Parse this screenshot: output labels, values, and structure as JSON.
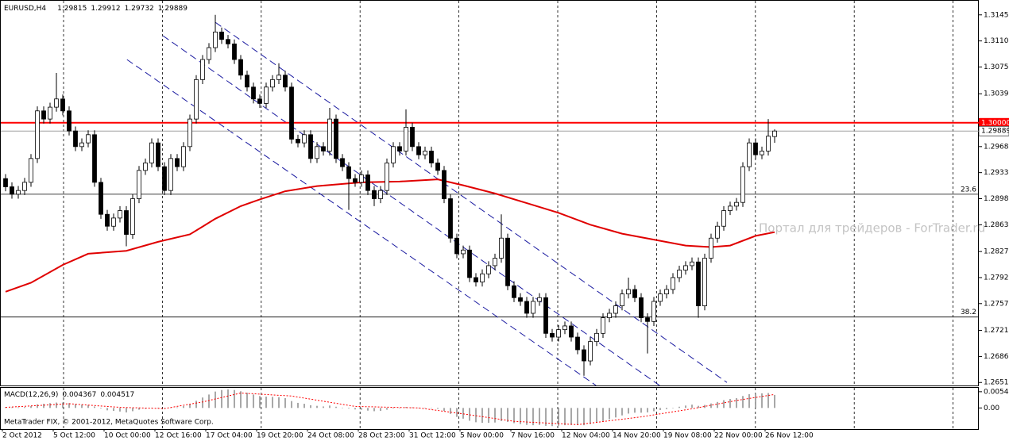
{
  "chart_data": {
    "type": "candlestick",
    "title": "EURUSD,H4",
    "categories": [
      "2 Oct 2012",
      null,
      null,
      null,
      null,
      null,
      null,
      null,
      "5 Oct 12:00",
      null,
      null,
      null,
      null,
      null,
      null,
      null,
      "10 Oct 00:00",
      null,
      null,
      null,
      null,
      null,
      null,
      null,
      "12 Oct 16:00",
      null,
      null,
      null,
      null,
      null,
      null,
      null,
      "17 Oct 04:00",
      null,
      null,
      null,
      null,
      null,
      null,
      null,
      "19 Oct 20:00",
      null,
      null,
      null,
      null,
      null,
      null,
      null,
      "24 Oct 08:00",
      null,
      null,
      null,
      null,
      null,
      null,
      null,
      "28 Oct 23:00",
      null,
      null,
      null,
      null,
      null,
      null,
      null,
      "31 Oct 12:00",
      null,
      null,
      null,
      null,
      null,
      null,
      null,
      "5 Nov 00:00",
      null,
      null,
      null,
      null,
      null,
      null,
      null,
      "7 Nov 16:00",
      null,
      null,
      null,
      null,
      null,
      null,
      null,
      "12 Nov 04:00",
      null,
      null,
      null,
      null,
      null,
      null,
      null,
      "14 Nov 20:00",
      null,
      null,
      null,
      null,
      null,
      null,
      null,
      "19 Nov 08:00",
      null,
      null,
      null,
      null,
      null,
      null,
      null,
      "22 Nov 00:00",
      null,
      null,
      null,
      null,
      null,
      null,
      null,
      "26 Nov 12:00",
      null
    ],
    "open": [
      1.2925,
      1.2914,
      1.2904,
      1.2909,
      1.292,
      1.2952,
      1.3016,
      1.3005,
      1.3021,
      1.3032,
      1.3016,
      1.2989,
      1.2968,
      1.2973,
      1.2984,
      1.292,
      1.2877,
      1.2861,
      1.2872,
      1.2882,
      1.285,
      1.2898,
      1.2936,
      1.2946,
      1.2973,
      1.2941,
      1.2909,
      1.2952,
      1.2941,
      1.2968,
      1.3005,
      1.3058,
      1.3085,
      1.3101,
      1.3122,
      1.3112,
      1.3106,
      1.3085,
      1.3064,
      1.3048,
      1.3032,
      1.3026,
      1.3048,
      1.3058,
      1.3064,
      1.3048,
      1.2978,
      1.2973,
      1.2984,
      1.2952,
      1.2968,
      1.2962,
      1.3005,
      1.2952,
      1.2941,
      1.2925,
      1.292,
      1.293,
      1.2909,
      1.2898,
      1.2909,
      1.2946,
      1.2968,
      1.2962,
      1.2994,
      1.2968,
      1.2957,
      1.2962,
      1.2946,
      1.2936,
      1.2898,
      1.2845,
      1.2824,
      1.2829,
      1.2792,
      1.2786,
      1.2797,
      1.2808,
      1.2818,
      1.2845,
      1.2781,
      1.2765,
      1.276,
      1.2744,
      1.276,
      1.2765,
      1.2717,
      1.2712,
      1.2722,
      1.2727,
      1.2712,
      1.2695,
      1.268,
      1.2706,
      1.2717,
      1.2738,
      1.2744,
      1.2754,
      1.277,
      1.2776,
      1.2765,
      1.2738,
      1.2733,
      1.276,
      1.277,
      1.2776,
      1.2792,
      1.2802,
      1.2808,
      1.2813,
      1.2754,
      1.2818,
      1.2845,
      1.2861,
      1.2882,
      1.2888,
      1.2893,
      1.2941,
      1.2973,
      1.2957,
      1.2962,
      1.29815
    ],
    "high": [
      1.2931,
      1.292,
      1.2915,
      1.2926,
      1.2958,
      1.3022,
      1.3022,
      1.3027,
      1.3067,
      1.3038,
      1.3022,
      1.2995,
      1.2979,
      1.299,
      1.299,
      1.2926,
      1.2883,
      1.2878,
      1.2888,
      1.2888,
      1.2904,
      1.2942,
      1.2952,
      1.2979,
      1.2979,
      1.2947,
      1.2958,
      1.2958,
      1.2974,
      1.3011,
      1.3064,
      1.3091,
      1.3107,
      1.3145,
      1.3128,
      1.3118,
      1.3112,
      1.3091,
      1.307,
      1.3054,
      1.3038,
      1.3054,
      1.3064,
      1.308,
      1.307,
      1.3054,
      1.2984,
      1.299,
      1.299,
      1.2974,
      1.2974,
      1.302,
      1.3011,
      1.2958,
      1.2947,
      1.2931,
      1.2936,
      1.2936,
      1.2915,
      1.2915,
      1.2952,
      1.2974,
      1.2974,
      1.3018,
      1.3,
      1.2974,
      1.2968,
      1.2968,
      1.2952,
      1.2942,
      1.2904,
      1.2851,
      1.2835,
      1.2835,
      1.2798,
      1.2803,
      1.2814,
      1.2824,
      1.2877,
      1.2851,
      1.2787,
      1.2771,
      1.2766,
      1.2766,
      1.2771,
      1.2771,
      1.2723,
      1.2728,
      1.2733,
      1.2733,
      1.2718,
      1.2701,
      1.2712,
      1.2723,
      1.2744,
      1.275,
      1.276,
      1.2776,
      1.2792,
      1.2782,
      1.2771,
      1.2744,
      1.2766,
      1.2776,
      1.2782,
      1.2798,
      1.2808,
      1.2814,
      1.2819,
      1.2819,
      1.2824,
      1.2851,
      1.2867,
      1.2888,
      1.2894,
      1.2899,
      1.2947,
      1.2979,
      1.2979,
      1.2968,
      1.3005,
      1.29912
    ],
    "low": [
      1.2908,
      1.2898,
      1.2898,
      1.2903,
      1.2914,
      1.2946,
      1.2999,
      1.2999,
      1.3015,
      1.301,
      1.2983,
      1.2962,
      1.2962,
      1.2967,
      1.2914,
      1.2871,
      1.2855,
      1.2855,
      1.2866,
      1.2834,
      1.2844,
      1.2892,
      1.293,
      1.294,
      1.2935,
      1.2903,
      1.2903,
      1.2935,
      1.2935,
      1.2962,
      1.2999,
      1.3052,
      1.3079,
      1.3095,
      1.3106,
      1.31,
      1.3079,
      1.3058,
      1.3042,
      1.3026,
      1.302,
      1.302,
      1.3042,
      1.3052,
      1.3042,
      1.2972,
      1.2967,
      1.2967,
      1.2946,
      1.2946,
      1.2956,
      1.2956,
      1.2946,
      1.2935,
      1.2883,
      1.2914,
      1.2914,
      1.2903,
      1.2888,
      1.2892,
      1.2903,
      1.294,
      1.2956,
      1.2956,
      1.2962,
      1.2951,
      1.2951,
      1.294,
      1.293,
      1.2892,
      1.2839,
      1.2818,
      1.2818,
      1.2786,
      1.278,
      1.278,
      1.2791,
      1.2802,
      1.2812,
      1.2775,
      1.2759,
      1.2754,
      1.2738,
      1.2738,
      1.2754,
      1.2711,
      1.2706,
      1.2706,
      1.2716,
      1.2706,
      1.2689,
      1.266,
      1.2674,
      1.27,
      1.2711,
      1.2732,
      1.2738,
      1.2748,
      1.2764,
      1.2759,
      1.2732,
      1.269,
      1.2727,
      1.2754,
      1.2764,
      1.277,
      1.2786,
      1.2796,
      1.2802,
      1.2738,
      1.2748,
      1.2812,
      1.2839,
      1.2855,
      1.2876,
      1.2882,
      1.2887,
      1.2935,
      1.2951,
      1.2951,
      1.2956,
      1.29732
    ],
    "close": [
      1.2914,
      1.2904,
      1.2909,
      1.292,
      1.2952,
      1.3016,
      1.3005,
      1.3021,
      1.3032,
      1.3016,
      1.2989,
      1.2968,
      1.2973,
      1.2984,
      1.292,
      1.2877,
      1.2861,
      1.2872,
      1.2882,
      1.285,
      1.2898,
      1.2936,
      1.2946,
      1.2973,
      1.2941,
      1.2909,
      1.2952,
      1.2941,
      1.2968,
      1.3005,
      1.3058,
      1.3085,
      1.3101,
      1.3122,
      1.3112,
      1.3106,
      1.3085,
      1.3064,
      1.3048,
      1.3032,
      1.3026,
      1.3048,
      1.3058,
      1.3064,
      1.3048,
      1.2978,
      1.2973,
      1.2984,
      1.2952,
      1.2968,
      1.2962,
      1.3005,
      1.2952,
      1.2941,
      1.2925,
      1.292,
      1.293,
      1.2909,
      1.2898,
      1.2909,
      1.2946,
      1.2968,
      1.2962,
      1.2994,
      1.2968,
      1.2957,
      1.2962,
      1.2946,
      1.2936,
      1.2898,
      1.2845,
      1.2824,
      1.2829,
      1.2792,
      1.2786,
      1.2797,
      1.2808,
      1.2818,
      1.2845,
      1.2781,
      1.2765,
      1.276,
      1.2744,
      1.276,
      1.2765,
      1.2717,
      1.2712,
      1.2722,
      1.2727,
      1.2712,
      1.2695,
      1.268,
      1.2706,
      1.2717,
      1.2738,
      1.2744,
      1.2754,
      1.277,
      1.2776,
      1.2765,
      1.2738,
      1.2733,
      1.276,
      1.277,
      1.2776,
      1.2792,
      1.2802,
      1.2808,
      1.2813,
      1.2754,
      1.2818,
      1.2845,
      1.2861,
      1.2882,
      1.2888,
      1.2893,
      1.2941,
      1.2973,
      1.2957,
      1.2962,
      1.2982,
      1.29889
    ],
    "bull_color": "#ffffff",
    "bear_color": "#000000",
    "ylim": [
      1.2647,
      1.3165
    ],
    "yticks": [
      {
        "value": 1.3145,
        "label": "1.31450"
      },
      {
        "value": 1.311,
        "label": "1.31100"
      },
      {
        "value": 1.3075,
        "label": "1.30750"
      },
      {
        "value": 1.3039,
        "label": "1.30390"
      },
      {
        "value": 1.2968,
        "label": "1.29680"
      },
      {
        "value": 1.2933,
        "label": "1.29330"
      },
      {
        "value": 1.2898,
        "label": "1.28980"
      },
      {
        "value": 1.2863,
        "label": "1.28630"
      },
      {
        "value": 1.2827,
        "label": "1.28270"
      },
      {
        "value": 1.2792,
        "label": "1.27920"
      },
      {
        "value": 1.2757,
        "label": "1.27570"
      },
      {
        "value": 1.2721,
        "label": "1.27210"
      },
      {
        "value": 1.2686,
        "label": "1.26860"
      },
      {
        "value": 1.2651,
        "label": "1.26510"
      }
    ],
    "level": {
      "value": 1.3,
      "label": "1.30000",
      "color": "#ff0000"
    },
    "fibo": {
      "color": "#000000",
      "levels": [
        {
          "value": 1.2904,
          "label": "23.6"
        },
        {
          "value": 1.2739,
          "label": "38.2"
        }
      ]
    },
    "ma": {
      "color": "#e00000",
      "x": [
        0,
        4,
        9,
        13,
        19,
        24,
        29,
        33,
        37,
        40,
        44,
        49,
        56,
        62,
        68,
        72,
        77,
        82,
        87,
        92,
        97,
        102,
        107,
        111,
        114,
        118,
        121
      ],
      "values": [
        1.2773,
        1.2785,
        1.2809,
        1.2824,
        1.2828,
        1.284,
        1.285,
        1.2871,
        1.2888,
        1.2897,
        1.2908,
        1.2915,
        1.292,
        1.2921,
        1.2924,
        1.2916,
        1.2905,
        1.2892,
        1.2879,
        1.2863,
        1.2851,
        1.2843,
        1.2835,
        1.2833,
        1.2835,
        1.2848,
        1.2853
      ]
    },
    "channels": {
      "color": "#1a1aa0",
      "lines": [
        {
          "x": [
            33,
            113.5
          ],
          "values": [
            1.3135,
            1.2651
          ]
        },
        {
          "x": [
            24.75,
            102.9
          ],
          "values": [
            1.3117,
            1.2647
          ]
        },
        {
          "x": [
            19.1,
            92.9
          ],
          "values": [
            1.3085,
            1.2647
          ]
        }
      ]
    },
    "macd": {
      "title": "MACD(12,26,9)",
      "ylim": [
        -0.0071,
        0.007
      ],
      "yticks": [
        {
          "value": 0.00544,
          "label": "0.005440"
        },
        {
          "value": 0,
          "label": "0.00"
        }
      ],
      "hist_color": "#8c8c8c",
      "hist": [
        0.0003,
        0.0002,
        0.0002,
        0.0003,
        0.0006,
        0.0012,
        0.0014,
        0.0016,
        0.0018,
        0.0018,
        0.0016,
        0.0013,
        0.0011,
        0.001,
        0.0005,
        -0.0002,
        -0.0008,
        -0.001,
        -0.0012,
        -0.0015,
        -0.0011,
        -0.0006,
        -0.0003,
        0.0001,
        0.0001,
        -0.0002,
        0.0001,
        0.0002,
        0.0006,
        0.0013,
        0.0024,
        0.0035,
        0.0045,
        0.0055,
        0.006,
        0.0062,
        0.006,
        0.0056,
        0.0051,
        0.0045,
        0.004,
        0.0038,
        0.0037,
        0.0036,
        0.0033,
        0.0023,
        0.0017,
        0.0014,
        0.0009,
        0.0007,
        0.0005,
        0.0008,
        0.0004,
        0.0001,
        -0.0002,
        -0.0005,
        -0.0006,
        -0.0009,
        -0.0011,
        -0.001,
        -0.0006,
        -0.0002,
        0,
        0.0003,
        0.0002,
        0.0001,
        0.0001,
        -0.0001,
        -0.0003,
        -0.001,
        -0.002,
        -0.003,
        -0.0036,
        -0.0043,
        -0.0048,
        -0.005,
        -0.005,
        -0.0049,
        -0.0044,
        -0.0047,
        -0.0051,
        -0.0054,
        -0.0057,
        -0.0058,
        -0.0057,
        -0.006,
        -0.0061,
        -0.006,
        -0.0058,
        -0.0057,
        -0.0057,
        -0.0058,
        -0.0054,
        -0.005,
        -0.0044,
        -0.0038,
        -0.0032,
        -0.0025,
        -0.0019,
        -0.0016,
        -0.0016,
        -0.0015,
        -0.0011,
        -0.0007,
        -0.0004,
        0,
        0.0004,
        0.0008,
        0.0011,
        0.0007,
        0.001,
        0.0015,
        0.002,
        0.0026,
        0.003,
        0.0033,
        0.004,
        0.0046,
        0.0048,
        0.0049,
        0.005,
        0.004367
      ],
      "signal": {
        "color": "#ff0000",
        "x": [
          0,
          10,
          18,
          25,
          31,
          37,
          45,
          55,
          65,
          72,
          80,
          90,
          100,
          108,
          115,
          121
        ],
        "values": [
          0.0002,
          0.0014,
          0.0002,
          -0.0002,
          0.002,
          0.005,
          0.004,
          0.0005,
          0,
          -0.002,
          -0.0045,
          -0.0056,
          -0.003,
          -0.0003,
          0.0025,
          0.004517
        ]
      }
    },
    "watermark": "Портал для трейдеров - ForTrader.ru",
    "copyright": "MetaTrader FIX, © 2001-2012, MetaQuotes Software Corp."
  }
}
